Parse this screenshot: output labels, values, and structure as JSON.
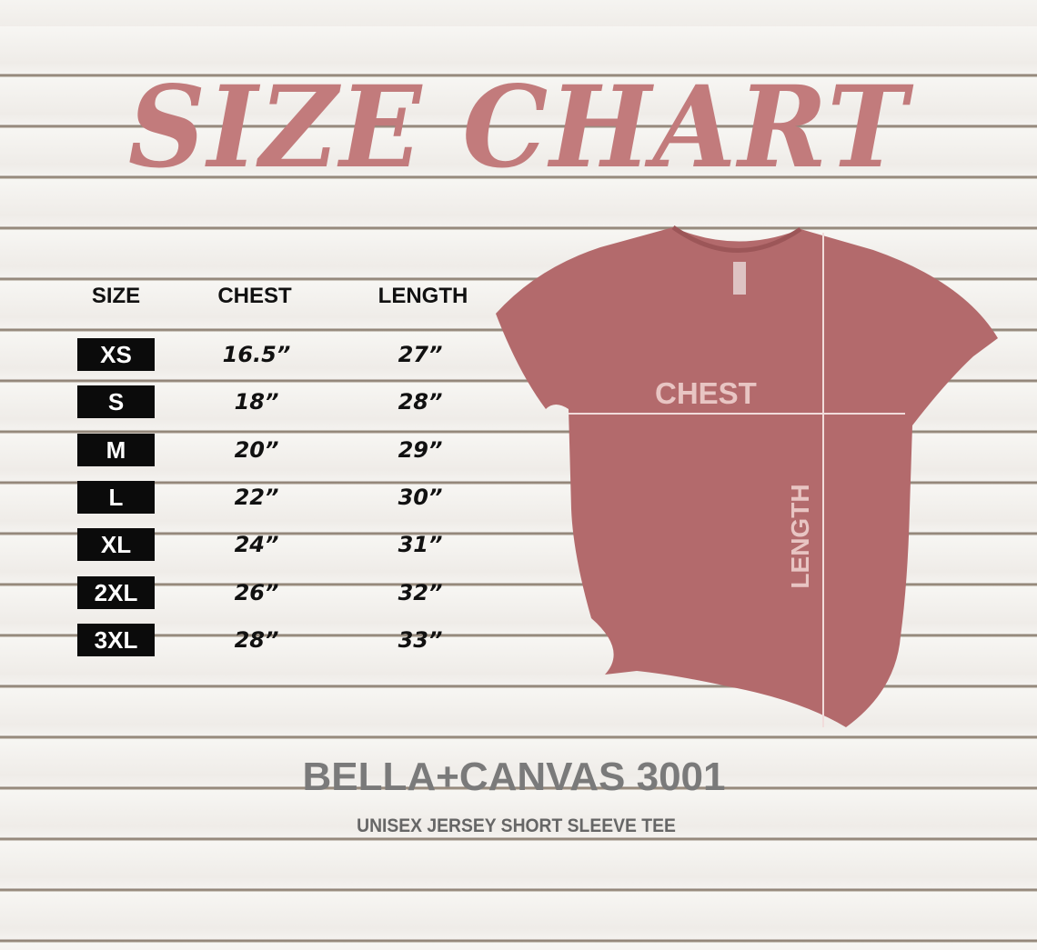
{
  "title": "SIZE CHART",
  "headers": {
    "size": "SIZE",
    "chest": "CHEST",
    "length": "LENGTH"
  },
  "rows": [
    {
      "size": "XS",
      "chest": "16.5”",
      "length": "27”"
    },
    {
      "size": "S",
      "chest": "18”",
      "length": "28”"
    },
    {
      "size": "M",
      "chest": "20”",
      "length": "29”"
    },
    {
      "size": "L",
      "chest": "22”",
      "length": "30”"
    },
    {
      "size": "XL",
      "chest": "24”",
      "length": "31”"
    },
    {
      "size": "2XL",
      "chest": "26”",
      "length": "32”"
    },
    {
      "size": "3XL",
      "chest": "28”",
      "length": "33”"
    }
  ],
  "shirt": {
    "chest_label": "CHEST",
    "length_label": "LENGTH",
    "color": "#b36a6c"
  },
  "brand": "BELLA+CANVAS 3001",
  "subtitle": "UNISEX JERSEY SHORT SLEEVE TEE",
  "colors": {
    "title": "#c27b7c",
    "brand": "#7a7a7a"
  }
}
